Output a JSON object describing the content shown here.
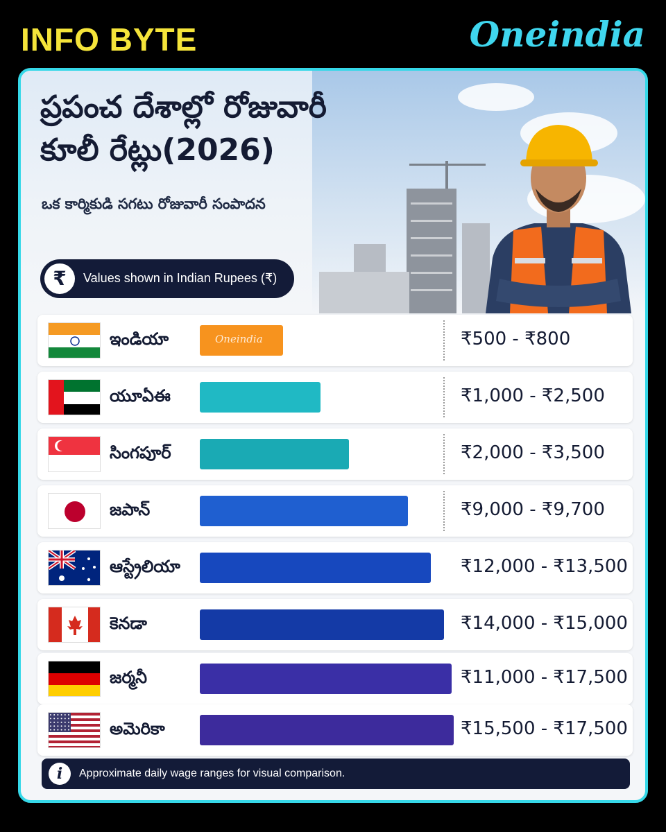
{
  "header": {
    "tag": "INFO BYTE",
    "brand": "Oneindia"
  },
  "card": {
    "title_line1": "ప్రపంచ దేశాల్లో రోజువారీ",
    "title_line2": "కూలీ రేట్లు(2026)",
    "subtitle": "ఒక కార్మికుడి సగటు రోజువారీ సంపాదన",
    "currency_note": "Values shown in Indian Rupees (₹)",
    "currency_symbol": "₹",
    "bar_watermark": "Oneindia",
    "footer_note": "Approximate daily wage ranges for visual comparison.",
    "footer_icon": "i"
  },
  "chart_data": {
    "type": "bar",
    "orientation": "horizontal",
    "unit": "INR per day",
    "categories": [
      "ఇండియా",
      "యూఏఈ",
      "సింగపూర్",
      "జపాన్",
      "ఆస్ట్రేలియా",
      "కెనడా",
      "జర్మనీ",
      "అమెరికా"
    ],
    "ranges": [
      {
        "label": "₹500 - ₹800",
        "min": 500,
        "max": 800
      },
      {
        "label": "₹1,000 - ₹2,500",
        "min": 1000,
        "max": 2500
      },
      {
        "label": "₹2,000 - ₹3,500",
        "min": 2000,
        "max": 3500
      },
      {
        "label": "₹9,000 - ₹9,700",
        "min": 9000,
        "max": 9700
      },
      {
        "label": "₹12,000 - ₹13,500",
        "min": 12000,
        "max": 13500
      },
      {
        "label": "₹14,000 - ₹15,000",
        "min": 14000,
        "max": 15000
      },
      {
        "label": "₹11,000 - ₹17,500",
        "min": 11000,
        "max": 17500
      },
      {
        "label": "₹15,500 - ₹17,500",
        "min": 15500,
        "max": 17500
      }
    ],
    "bar_fraction": [
      0.33,
      0.47,
      0.58,
      0.81,
      0.9,
      0.95,
      0.98,
      0.99
    ],
    "flags": [
      "india-flag-icon",
      "uae-flag-icon",
      "singapore-flag-icon",
      "japan-flag-icon",
      "australia-flag-icon",
      "canada-flag-icon",
      "germany-flag-icon",
      "usa-flag-icon"
    ],
    "colors": [
      "#f7931e",
      "#20b9c4",
      "#1aaab4",
      "#1f5fd0",
      "#1748be",
      "#143aa6",
      "#3a2fa6",
      "#3d2b9c"
    ]
  }
}
